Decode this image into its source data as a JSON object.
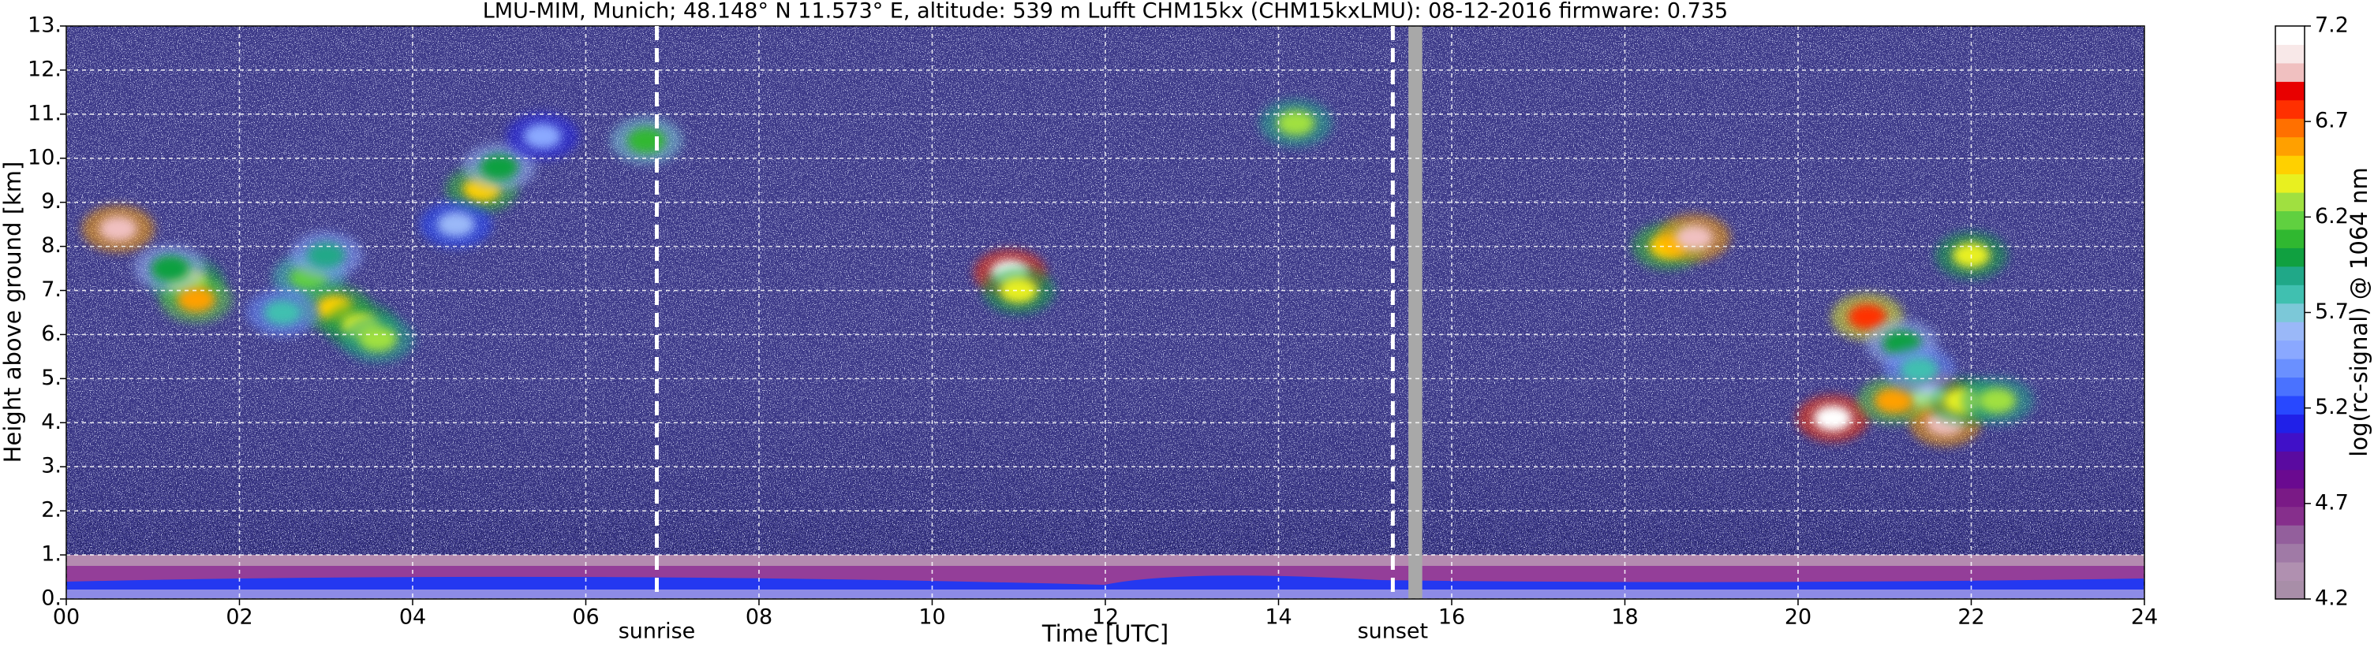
{
  "chart_data": {
    "type": "ceilometer",
    "title": "LMU-MIM, Munich; 48.148° N 11.573° E, altitude: 539 m    Lufft CHM15kx (CHM15kxLMU): 08-12-2016    firmware: 0.735",
    "x_label": "Time [UTC]",
    "y_label": "Height above ground [km]",
    "colorbar_label": "log(rc-signal) @ 1064 nm",
    "xlim": [
      0,
      24
    ],
    "xticks": [
      {
        "value": 0,
        "label": "00"
      },
      {
        "value": 2,
        "label": "02"
      },
      {
        "value": 4,
        "label": "04"
      },
      {
        "value": 6,
        "label": "06"
      },
      {
        "value": 8,
        "label": "08"
      },
      {
        "value": 10,
        "label": "10"
      },
      {
        "value": 12,
        "label": "12"
      },
      {
        "value": 14,
        "label": "14"
      },
      {
        "value": 16,
        "label": "16"
      },
      {
        "value": 18,
        "label": "18"
      },
      {
        "value": 20,
        "label": "20"
      },
      {
        "value": 22,
        "label": "22"
      },
      {
        "value": 24,
        "label": "24"
      }
    ],
    "ylim": [
      0,
      13
    ],
    "yticks": [
      {
        "value": 0,
        "label": "0."
      },
      {
        "value": 1,
        "label": "1."
      },
      {
        "value": 2,
        "label": "2."
      },
      {
        "value": 3,
        "label": "3."
      },
      {
        "value": 4,
        "label": "4."
      },
      {
        "value": 5,
        "label": "5."
      },
      {
        "value": 6,
        "label": "6."
      },
      {
        "value": 7,
        "label": "7."
      },
      {
        "value": 8,
        "label": "8."
      },
      {
        "value": 9,
        "label": "9."
      },
      {
        "value": 10,
        "label": "10."
      },
      {
        "value": 11,
        "label": "11."
      },
      {
        "value": 12,
        "label": "12."
      },
      {
        "value": 13,
        "label": "13."
      }
    ],
    "grid": true,
    "clim": [
      4.2,
      7.2
    ],
    "cticks": [
      4.2,
      4.7,
      5.2,
      5.7,
      6.2,
      6.7,
      7.2
    ],
    "colormap": [
      "#a88ea8",
      "#b090b0",
      "#a07aa6",
      "#935f9c",
      "#862f8c",
      "#7a1a86",
      "#6a0a90",
      "#5a0aa0",
      "#4010c8",
      "#2020e8",
      "#2848ff",
      "#4a72ff",
      "#6a90ff",
      "#8aa8ff",
      "#9ab8f8",
      "#7cc8d8",
      "#40c0b0",
      "#20a888",
      "#10a040",
      "#30b830",
      "#60d040",
      "#a0e040",
      "#e8f020",
      "#ffd000",
      "#ffa000",
      "#ff7000",
      "#ff3000",
      "#e80000",
      "#f0c0c0",
      "#f8e8e8",
      "#ffffff"
    ],
    "annotations": [
      {
        "text": "sunrise",
        "x": 6.82
      },
      {
        "text": "sunset",
        "x": 15.32
      }
    ],
    "data_gap": [
      15.5,
      15.66
    ],
    "echoes": {
      "x": [
        0.6,
        1.4,
        1.5,
        1.2,
        2.8,
        3.1,
        3.4,
        3.6,
        3.0,
        2.5,
        4.8,
        5.0,
        4.5,
        5.5,
        6.7,
        10.9,
        11.0,
        14.2,
        18.5,
        18.8,
        20.4,
        20.8,
        21.2,
        21.5,
        21.7,
        21.9,
        22.3,
        22.0,
        21.1,
        21.4
      ],
      "y": [
        8.4,
        7.2,
        6.8,
        7.5,
        7.3,
        6.6,
        6.2,
        5.9,
        7.8,
        6.5,
        9.3,
        9.8,
        8.5,
        10.5,
        10.4,
        7.4,
        7.0,
        10.8,
        8.0,
        8.2,
        4.1,
        6.4,
        5.8,
        4.6,
        4.0,
        4.5,
        4.5,
        7.8,
        4.5,
        5.2
      ],
      "values": [
        7.0,
        6.4,
        6.6,
        6.0,
        6.2,
        6.5,
        6.4,
        6.3,
        5.9,
        5.8,
        6.5,
        6.0,
        5.6,
        5.5,
        6.1,
        7.2,
        6.4,
        6.3,
        6.5,
        7.0,
        7.2,
        6.8,
        6.0,
        7.2,
        7.0,
        6.4,
        6.3,
        6.4,
        6.6,
        5.8
      ]
    }
  }
}
